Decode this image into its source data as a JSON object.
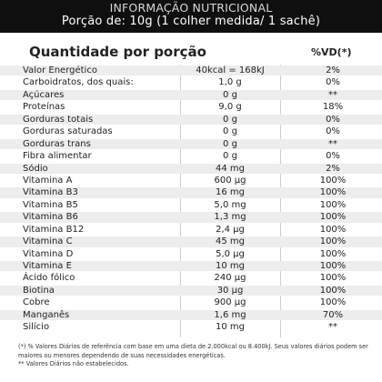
{
  "header": {
    "title": "INFORMAÇÃO NUTRICIONAL",
    "subtitle": "Porção de: 10g (1 colher medida/ 1 sachê)"
  },
  "table": {
    "quantity_header": "Quantidade por porção",
    "vd_header": "%VD(*)",
    "rows": [
      {
        "name": "Valor Energético",
        "amount": "40kcal = 168kJ",
        "vd": "2%"
      },
      {
        "name": "Carboidratos, dos quais:",
        "amount": "1,0 g",
        "vd": "0%"
      },
      {
        "name": "Açúcares",
        "amount": "0 g",
        "vd": "**"
      },
      {
        "name": "Proteínas",
        "amount": "9,0 g",
        "vd": "18%"
      },
      {
        "name": "Gorduras totais",
        "amount": "0 g",
        "vd": "0%"
      },
      {
        "name": "Gorduras saturadas",
        "amount": "0 g",
        "vd": "0%"
      },
      {
        "name": "Gorduras trans",
        "amount": "0 g",
        "vd": "**"
      },
      {
        "name": "Fibra alimentar",
        "amount": "0 g",
        "vd": "0%"
      },
      {
        "name": "Sódio",
        "amount": "44 mg",
        "vd": "2%"
      },
      {
        "name": "Vitamina A",
        "amount": "600 µg",
        "vd": "100%"
      },
      {
        "name": "Vitamina B3",
        "amount": "16 mg",
        "vd": "100%"
      },
      {
        "name": "Vitamina B5",
        "amount": "5,0 mg",
        "vd": "100%"
      },
      {
        "name": "Vitamina B6",
        "amount": "1,3 mg",
        "vd": "100%"
      },
      {
        "name": "Vitamina B12",
        "amount": "2,4 µg",
        "vd": "100%"
      },
      {
        "name": "Vitamina C",
        "amount": "45 mg",
        "vd": "100%"
      },
      {
        "name": "Vitamina D",
        "amount": "5,0 µg",
        "vd": "100%"
      },
      {
        "name": "Vitamina E",
        "amount": "10 mg",
        "vd": "100%"
      },
      {
        "name": "Ácido fólico",
        "amount": "240 µg",
        "vd": "100%"
      },
      {
        "name": "Biotina",
        "amount": "30 µg",
        "vd": "100%"
      },
      {
        "name": "Cobre",
        "amount": "900 µg",
        "vd": "100%"
      },
      {
        "name": "Manganês",
        "amount": "1,6 mg",
        "vd": "70%"
      },
      {
        "name": "Silício",
        "amount": "10 mg",
        "vd": "**"
      }
    ]
  },
  "footnote": {
    "line1": "(*) % Valores Diários de referência com base em uma dieta de 2.000kcal ou 8.400kJ. Seus valores diários podem ser maiores ou menores dependendo de suas necessidades energéticas.",
    "line2": "** Valores Diários não estabelecidos."
  }
}
